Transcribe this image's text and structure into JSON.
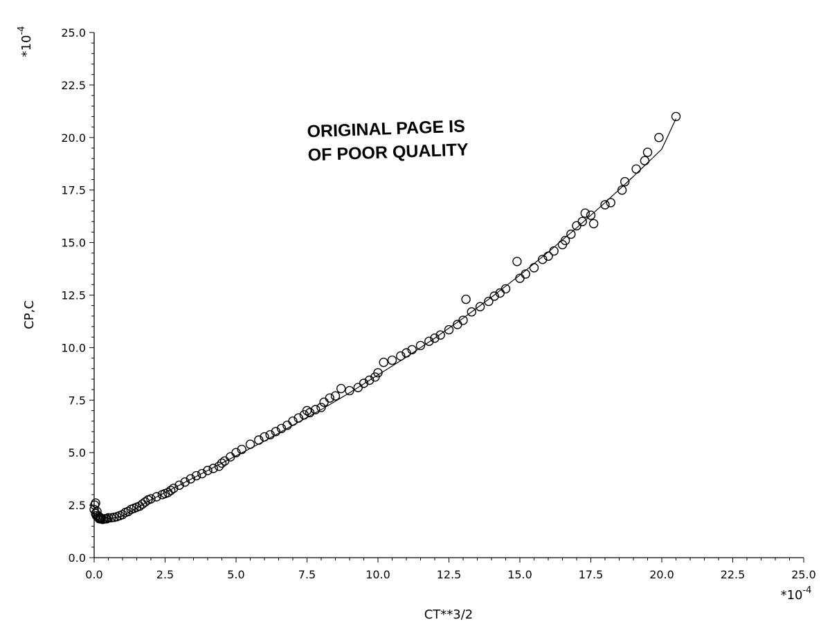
{
  "chart_data": {
    "type": "scatter",
    "title": "",
    "xlabel": "CT**3/2",
    "ylabel": "CP,C",
    "x_multiplier": "*10",
    "x_exponent": "-4",
    "y_multiplier": "*10",
    "y_exponent": "-4",
    "xlim": [
      0,
      25
    ],
    "ylim": [
      0,
      25
    ],
    "xticks": [
      "0.0",
      "2.5",
      "5.0",
      "7.5",
      "10.0",
      "12.5",
      "15.0",
      "17.5",
      "20.0",
      "22.5",
      "25.0"
    ],
    "yticks": [
      "0.0",
      "2.5",
      "5.0",
      "7.5",
      "10.0",
      "12.5",
      "15.0",
      "17.5",
      "20.0",
      "22.5",
      "25.0"
    ],
    "grid": false,
    "legend": "none",
    "stamp": [
      "ORIGINAL PAGE IS",
      "OF POOR QUALITY"
    ],
    "series": [
      {
        "marker": "open-circle",
        "x": [
          0.0,
          0.02,
          0.05,
          0.05,
          0.08,
          0.1,
          0.12,
          0.15,
          0.18,
          0.2,
          0.22,
          0.25,
          0.3,
          0.35,
          0.4,
          0.45,
          0.5,
          0.6,
          0.7,
          0.8,
          0.9,
          1.0,
          1.1,
          1.2,
          1.3,
          1.4,
          1.5,
          1.6,
          1.7,
          1.8,
          1.9,
          2.0,
          2.2,
          2.4,
          2.5,
          2.6,
          2.7,
          2.8,
          3.0,
          3.2,
          3.4,
          3.6,
          3.8,
          4.0,
          4.2,
          4.4,
          4.5,
          4.6,
          4.8,
          5.0,
          5.2,
          5.5,
          5.8,
          6.0,
          6.2,
          6.4,
          6.6,
          6.8,
          7.0,
          7.2,
          7.4,
          7.5,
          7.6,
          7.8,
          8.0,
          8.1,
          8.3,
          8.5,
          8.7,
          9.0,
          9.3,
          9.5,
          9.7,
          9.9,
          10.0,
          10.2,
          10.5,
          10.8,
          11.0,
          11.2,
          11.5,
          11.8,
          12.0,
          12.2,
          12.5,
          12.8,
          13.0,
          13.1,
          13.3,
          13.6,
          13.9,
          14.1,
          14.3,
          14.5,
          14.9,
          15.0,
          15.2,
          15.5,
          15.8,
          16.0,
          16.2,
          16.5,
          16.6,
          16.8,
          17.0,
          17.2,
          17.3,
          17.5,
          17.6,
          18.0,
          18.2,
          18.6,
          18.7,
          19.1,
          19.4,
          19.5,
          19.9,
          20.5
        ],
        "y": [
          2.3,
          2.5,
          2.6,
          2.1,
          2.0,
          2.2,
          1.95,
          1.9,
          1.85,
          1.9,
          1.85,
          1.85,
          1.82,
          1.85,
          1.85,
          1.85,
          1.9,
          1.9,
          1.92,
          1.95,
          2.0,
          2.05,
          2.15,
          2.2,
          2.3,
          2.35,
          2.4,
          2.45,
          2.55,
          2.65,
          2.75,
          2.8,
          2.9,
          3.0,
          3.05,
          3.1,
          3.2,
          3.3,
          3.45,
          3.6,
          3.75,
          3.9,
          4.0,
          4.15,
          4.25,
          4.35,
          4.5,
          4.6,
          4.8,
          5.0,
          5.15,
          5.4,
          5.6,
          5.75,
          5.85,
          6.0,
          6.15,
          6.3,
          6.5,
          6.65,
          6.8,
          7.0,
          6.9,
          7.05,
          7.15,
          7.4,
          7.6,
          7.7,
          8.05,
          7.95,
          8.1,
          8.3,
          8.45,
          8.6,
          8.8,
          9.3,
          9.4,
          9.6,
          9.75,
          9.9,
          10.1,
          10.3,
          10.45,
          10.6,
          10.85,
          11.1,
          11.3,
          12.3,
          11.7,
          11.95,
          12.2,
          12.45,
          12.6,
          12.8,
          14.1,
          13.3,
          13.5,
          13.8,
          14.2,
          14.35,
          14.6,
          14.9,
          15.1,
          15.4,
          15.8,
          16.0,
          16.4,
          16.3,
          15.9,
          16.8,
          16.9,
          17.5,
          17.9,
          18.5,
          18.9,
          19.3,
          20.0,
          21.0
        ]
      }
    ],
    "fit_curve": {
      "x": [
        0.0,
        0.5,
        1.0,
        2.0,
        3.0,
        4.0,
        5.0,
        6.0,
        7.0,
        8.0,
        9.0,
        10.0,
        11.0,
        12.0,
        13.0,
        14.0,
        15.0,
        16.0,
        17.0,
        18.0,
        19.0,
        20.0,
        20.5
      ],
      "y": [
        2.4,
        1.85,
        1.98,
        2.75,
        3.45,
        4.15,
        4.85,
        5.55,
        6.3,
        7.05,
        7.85,
        8.7,
        9.55,
        10.45,
        11.4,
        12.4,
        13.45,
        14.55,
        15.7,
        16.9,
        18.15,
        19.45,
        20.9
      ]
    }
  }
}
